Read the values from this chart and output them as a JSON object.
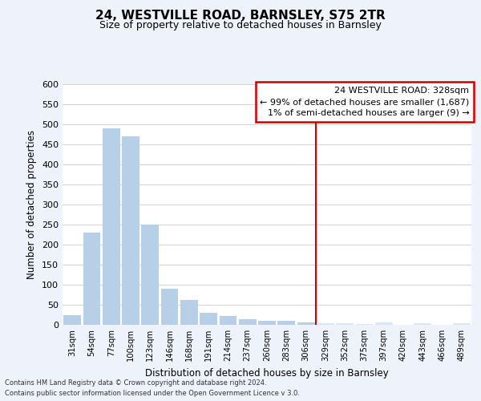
{
  "title": "24, WESTVILLE ROAD, BARNSLEY, S75 2TR",
  "subtitle": "Size of property relative to detached houses in Barnsley",
  "xlabel": "Distribution of detached houses by size in Barnsley",
  "ylabel": "Number of detached properties",
  "footer_lines": [
    "Contains HM Land Registry data © Crown copyright and database right 2024.",
    "Contains public sector information licensed under the Open Government Licence v 3.0."
  ],
  "categories": [
    "31sqm",
    "54sqm",
    "77sqm",
    "100sqm",
    "123sqm",
    "146sqm",
    "168sqm",
    "191sqm",
    "214sqm",
    "237sqm",
    "260sqm",
    "283sqm",
    "306sqm",
    "329sqm",
    "352sqm",
    "375sqm",
    "397sqm",
    "420sqm",
    "443sqm",
    "466sqm",
    "489sqm"
  ],
  "values": [
    25,
    230,
    490,
    470,
    250,
    90,
    63,
    30,
    23,
    15,
    10,
    10,
    7,
    5,
    4,
    3,
    6,
    0,
    5,
    0,
    5
  ],
  "highlight_index": 13,
  "bar_color_left": "#b8cfe8",
  "bar_color_right": "#d8e8f8",
  "highlight_line_color": "#cc0000",
  "annotation_line1": "24 WESTVILLE ROAD: 328sqm",
  "annotation_line2": "← 99% of detached houses are smaller (1,687)",
  "annotation_line3": "1% of semi-detached houses are larger (9) →",
  "annotation_box_color": "#cc0000",
  "ylim": [
    0,
    600
  ],
  "yticks": [
    0,
    50,
    100,
    150,
    200,
    250,
    300,
    350,
    400,
    450,
    500,
    550,
    600
  ],
  "grid_color": "#cccccc",
  "plot_bg_color": "#ffffff",
  "fig_bg_color": "#eef2fa"
}
